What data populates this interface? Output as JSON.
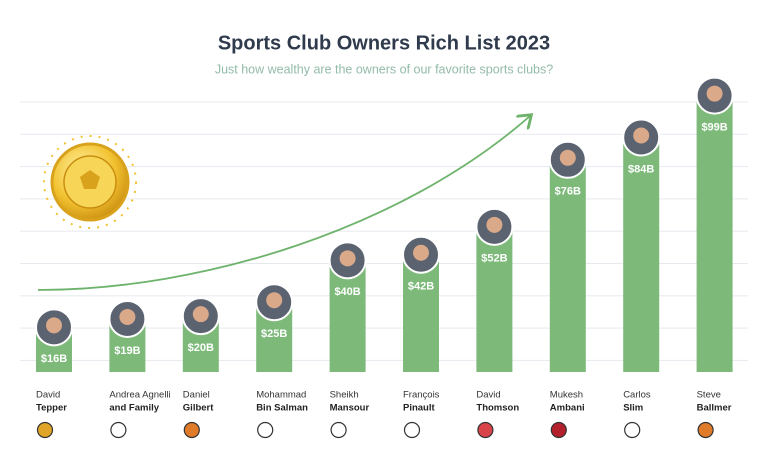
{
  "chart_data": {
    "type": "bar",
    "title": "Sports Club Owners Rich List 2023",
    "subtitle": "Just how wealthy are the owners of our favorite sports clubs?",
    "categories": [
      [
        "David",
        "Tepper"
      ],
      [
        "Andrea Agnelli",
        "and Family"
      ],
      [
        "Daniel",
        "Gilbert"
      ],
      [
        "Mohammad",
        "Bin Salman"
      ],
      [
        "Sheikh",
        "Mansour"
      ],
      [
        "François",
        "Pinault"
      ],
      [
        "David",
        "Thomson"
      ],
      [
        "Mukesh",
        "Ambani"
      ],
      [
        "Carlos",
        "Slim"
      ],
      [
        "Steve",
        "Ballmer"
      ]
    ],
    "values": [
      16,
      19,
      20,
      25,
      40,
      42,
      52,
      76,
      84,
      99
    ],
    "value_labels": [
      "$16B",
      "$19B",
      "$20B",
      "$25B",
      "$40B",
      "$42B",
      "$52B",
      "$76B",
      "$84B",
      "$99B"
    ],
    "color": "#7dba7a",
    "ylim": [
      0,
      100
    ]
  }
}
